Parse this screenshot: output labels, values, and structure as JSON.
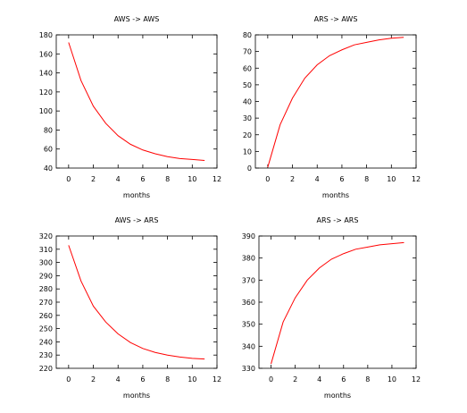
{
  "chart_data": [
    {
      "type": "line",
      "title": "AWS -> AWS",
      "xlabel": "months",
      "ylabel": "",
      "xlim": [
        -1,
        12
      ],
      "ylim": [
        40,
        180
      ],
      "xticks": [
        0,
        2,
        4,
        6,
        8,
        10,
        12
      ],
      "yticks": [
        40,
        60,
        80,
        100,
        120,
        140,
        160,
        180
      ],
      "grid": false,
      "series": [
        {
          "color": "#ff0000",
          "x": [
            0,
            1,
            2,
            3,
            4,
            5,
            6,
            7,
            8,
            9,
            10,
            11
          ],
          "y": [
            172,
            132,
            105,
            87,
            74,
            65,
            59,
            55,
            52,
            50,
            49,
            48
          ]
        }
      ]
    },
    {
      "type": "line",
      "title": "ARS -> AWS",
      "xlabel": "months",
      "ylabel": "",
      "xlim": [
        -1,
        12
      ],
      "ylim": [
        0,
        80
      ],
      "xticks": [
        0,
        2,
        4,
        6,
        8,
        10,
        12
      ],
      "yticks": [
        0,
        10,
        20,
        30,
        40,
        50,
        60,
        70,
        80
      ],
      "grid": false,
      "series": [
        {
          "color": "#ff0000",
          "x": [
            0,
            1,
            2,
            3,
            4,
            5,
            6,
            7,
            8,
            9,
            10,
            11
          ],
          "y": [
            0.5,
            26,
            42,
            54,
            62,
            67.5,
            71,
            74,
            75.5,
            77,
            78,
            78.5
          ]
        }
      ]
    },
    {
      "type": "line",
      "title": "AWS -> ARS",
      "xlabel": "months",
      "ylabel": "",
      "xlim": [
        -1,
        12
      ],
      "ylim": [
        220,
        320
      ],
      "xticks": [
        0,
        2,
        4,
        6,
        8,
        10,
        12
      ],
      "yticks": [
        220,
        230,
        240,
        250,
        260,
        270,
        280,
        290,
        300,
        310,
        320
      ],
      "grid": false,
      "series": [
        {
          "color": "#ff0000",
          "x": [
            0,
            1,
            2,
            3,
            4,
            5,
            6,
            7,
            8,
            9,
            10,
            11
          ],
          "y": [
            313,
            286,
            267,
            255,
            246,
            239.5,
            235,
            232,
            230,
            228.5,
            227.5,
            227
          ]
        }
      ]
    },
    {
      "type": "line",
      "title": "ARS -> ARS",
      "xlabel": "months",
      "ylabel": "",
      "xlim": [
        -1,
        12
      ],
      "ylim": [
        330,
        390
      ],
      "xticks": [
        0,
        2,
        4,
        6,
        8,
        10,
        12
      ],
      "yticks": [
        330,
        340,
        350,
        360,
        370,
        380,
        390
      ],
      "grid": false,
      "series": [
        {
          "color": "#ff0000",
          "x": [
            0,
            1,
            2,
            3,
            4,
            5,
            6,
            7,
            8,
            9,
            10,
            11
          ],
          "y": [
            332,
            351,
            362,
            370,
            375.5,
            379.5,
            382,
            384,
            385,
            386,
            386.5,
            387
          ]
        }
      ]
    }
  ]
}
